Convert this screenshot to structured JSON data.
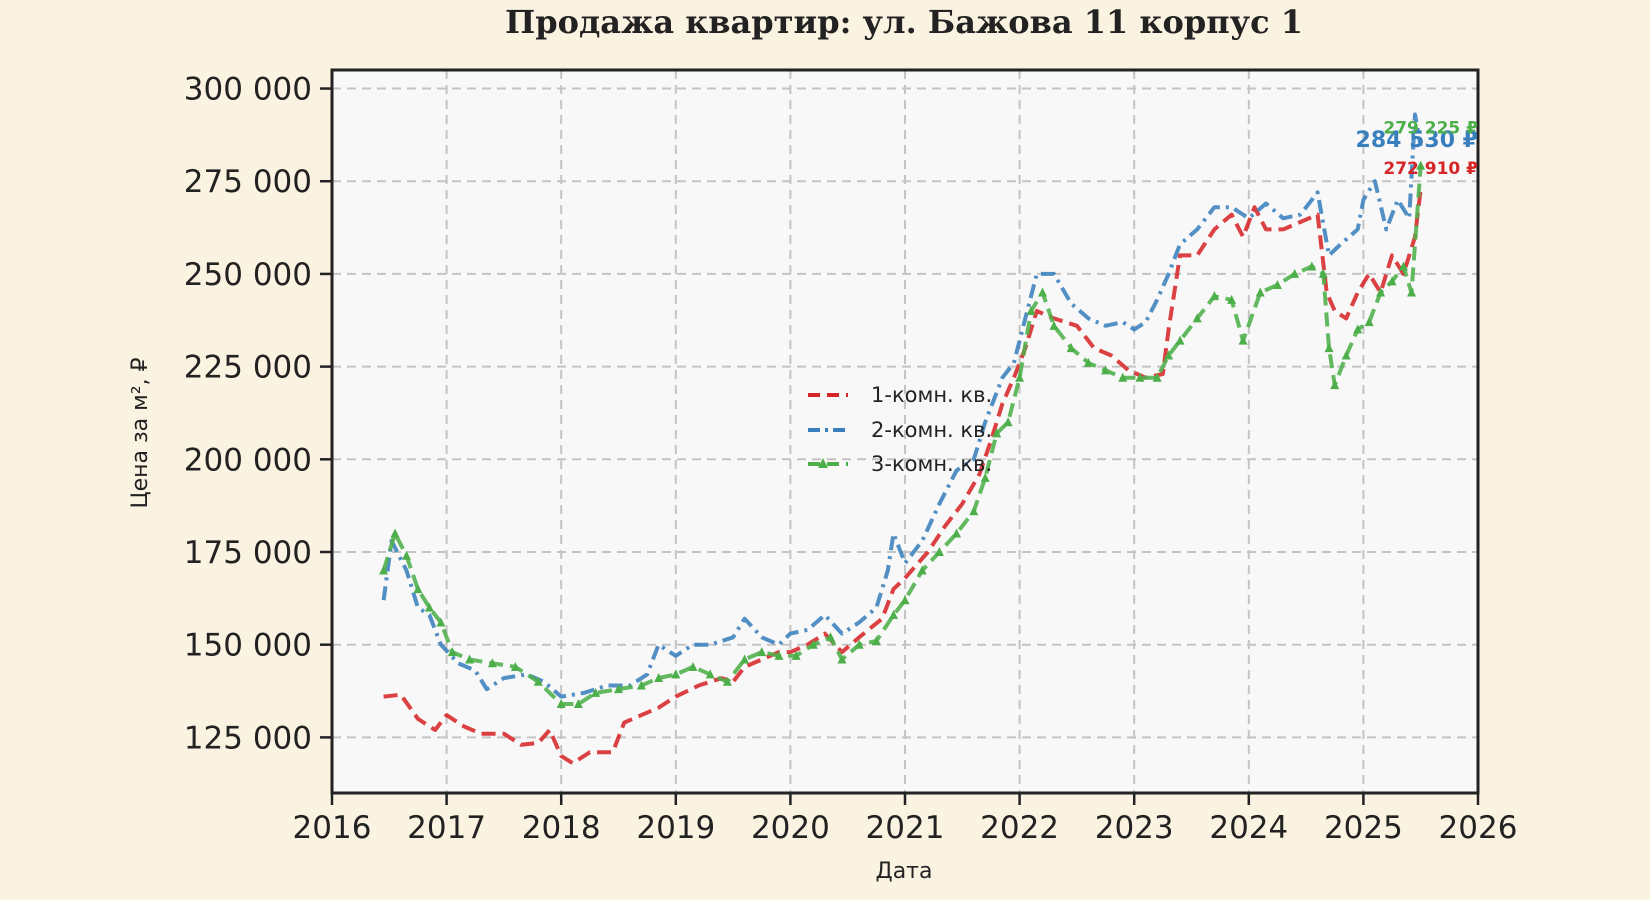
{
  "chart_data": {
    "type": "line",
    "title": "Продажа квартир: ул. Бажова 11 корпус 1",
    "xlabel": "Дата",
    "ylabel": "Цена за м², ₽",
    "x_ticks": [
      "2016",
      "2017",
      "2018",
      "2019",
      "2020",
      "2021",
      "2022",
      "2023",
      "2024",
      "2025",
      "2026"
    ],
    "y_ticks": [
      "125 000",
      "150 000",
      "175 000",
      "200 000",
      "225 000",
      "250 000",
      "275 000",
      "300 000"
    ],
    "xlim": [
      2016.0,
      2026.0
    ],
    "ylim": [
      110000,
      305000
    ],
    "grid": true,
    "legend_position": "center",
    "series": [
      {
        "name": "1-комн. кв.",
        "color": "#d62728",
        "style": "dashed",
        "end_label": "272 910 ₽",
        "end_value": 272910,
        "points": [
          [
            2016.45,
            136000
          ],
          [
            2016.6,
            136500
          ],
          [
            2016.75,
            130000
          ],
          [
            2016.9,
            127000
          ],
          [
            2017.0,
            131000
          ],
          [
            2017.15,
            128000
          ],
          [
            2017.3,
            126000
          ],
          [
            2017.5,
            126000
          ],
          [
            2017.65,
            123000
          ],
          [
            2017.8,
            123500
          ],
          [
            2017.9,
            127000
          ],
          [
            2018.0,
            120000
          ],
          [
            2018.1,
            118000
          ],
          [
            2018.25,
            121000
          ],
          [
            2018.45,
            121000
          ],
          [
            2018.55,
            129000
          ],
          [
            2018.7,
            131000
          ],
          [
            2018.85,
            133000
          ],
          [
            2019.0,
            136000
          ],
          [
            2019.2,
            139000
          ],
          [
            2019.4,
            141000
          ],
          [
            2019.5,
            140000
          ],
          [
            2019.6,
            144000
          ],
          [
            2019.75,
            146000
          ],
          [
            2019.9,
            148000
          ],
          [
            2020.0,
            148000
          ],
          [
            2020.15,
            150000
          ],
          [
            2020.3,
            153000
          ],
          [
            2020.45,
            148000
          ],
          [
            2020.6,
            152000
          ],
          [
            2020.8,
            157000
          ],
          [
            2020.9,
            165000
          ],
          [
            2021.0,
            168000
          ],
          [
            2021.2,
            175000
          ],
          [
            2021.35,
            182000
          ],
          [
            2021.5,
            188000
          ],
          [
            2021.65,
            196000
          ],
          [
            2021.75,
            205000
          ],
          [
            2021.85,
            215000
          ],
          [
            2021.95,
            222000
          ],
          [
            2022.05,
            230000
          ],
          [
            2022.15,
            240000
          ],
          [
            2022.3,
            238000
          ],
          [
            2022.5,
            236000
          ],
          [
            2022.65,
            230000
          ],
          [
            2022.8,
            228000
          ],
          [
            2022.95,
            224000
          ],
          [
            2023.1,
            222000
          ],
          [
            2023.25,
            223000
          ],
          [
            2023.3,
            235000
          ],
          [
            2023.4,
            255000
          ],
          [
            2023.55,
            255000
          ],
          [
            2023.7,
            262000
          ],
          [
            2023.85,
            266000
          ],
          [
            2023.95,
            260000
          ],
          [
            2024.05,
            268000
          ],
          [
            2024.15,
            262000
          ],
          [
            2024.3,
            262000
          ],
          [
            2024.45,
            264000
          ],
          [
            2024.6,
            266000
          ],
          [
            2024.68,
            245000
          ],
          [
            2024.75,
            240000
          ],
          [
            2024.85,
            238000
          ],
          [
            2024.95,
            245000
          ],
          [
            2025.05,
            250000
          ],
          [
            2025.15,
            245000
          ],
          [
            2025.25,
            255000
          ],
          [
            2025.35,
            250000
          ],
          [
            2025.45,
            260000
          ],
          [
            2025.5,
            272910
          ]
        ]
      },
      {
        "name": "2-комн. кв.",
        "color": "#3a7fbd",
        "style": "dashdot",
        "end_label": "284 530 ₽",
        "end_value": 284530,
        "points": [
          [
            2016.45,
            162000
          ],
          [
            2016.52,
            178000
          ],
          [
            2016.65,
            170000
          ],
          [
            2016.75,
            160000
          ],
          [
            2016.85,
            158000
          ],
          [
            2016.95,
            150000
          ],
          [
            2017.1,
            145000
          ],
          [
            2017.25,
            143000
          ],
          [
            2017.35,
            138000
          ],
          [
            2017.5,
            141000
          ],
          [
            2017.7,
            142000
          ],
          [
            2017.85,
            140000
          ],
          [
            2018.0,
            136000
          ],
          [
            2018.2,
            137000
          ],
          [
            2018.4,
            139000
          ],
          [
            2018.6,
            139000
          ],
          [
            2018.75,
            142000
          ],
          [
            2018.85,
            150000
          ],
          [
            2019.0,
            147000
          ],
          [
            2019.15,
            150000
          ],
          [
            2019.3,
            150000
          ],
          [
            2019.5,
            152000
          ],
          [
            2019.6,
            157000
          ],
          [
            2019.75,
            152000
          ],
          [
            2019.9,
            150000
          ],
          [
            2020.0,
            153000
          ],
          [
            2020.15,
            154000
          ],
          [
            2020.3,
            158000
          ],
          [
            2020.45,
            153000
          ],
          [
            2020.6,
            156000
          ],
          [
            2020.75,
            160000
          ],
          [
            2020.85,
            170000
          ],
          [
            2020.9,
            180000
          ],
          [
            2021.0,
            172000
          ],
          [
            2021.15,
            178000
          ],
          [
            2021.3,
            188000
          ],
          [
            2021.45,
            197000
          ],
          [
            2021.6,
            200000
          ],
          [
            2021.7,
            210000
          ],
          [
            2021.85,
            222000
          ],
          [
            2021.95,
            226000
          ],
          [
            2022.05,
            238000
          ],
          [
            2022.15,
            250000
          ],
          [
            2022.3,
            250000
          ],
          [
            2022.45,
            242000
          ],
          [
            2022.6,
            238000
          ],
          [
            2022.75,
            236000
          ],
          [
            2022.9,
            237000
          ],
          [
            2023.0,
            235000
          ],
          [
            2023.1,
            237000
          ],
          [
            2023.2,
            243000
          ],
          [
            2023.3,
            250000
          ],
          [
            2023.4,
            258000
          ],
          [
            2023.55,
            262000
          ],
          [
            2023.7,
            268000
          ],
          [
            2023.85,
            268000
          ],
          [
            2024.0,
            265000
          ],
          [
            2024.15,
            269000
          ],
          [
            2024.3,
            265000
          ],
          [
            2024.45,
            266000
          ],
          [
            2024.6,
            272000
          ],
          [
            2024.7,
            255000
          ],
          [
            2024.8,
            258000
          ],
          [
            2024.95,
            262000
          ],
          [
            2025.0,
            270000
          ],
          [
            2025.1,
            275000
          ],
          [
            2025.2,
            262000
          ],
          [
            2025.3,
            270000
          ],
          [
            2025.4,
            265000
          ],
          [
            2025.45,
            293000
          ],
          [
            2025.5,
            284530
          ]
        ]
      },
      {
        "name": "3-комн. кв.",
        "color": "#4daf4a",
        "style": "dashed-triangle",
        "end_label": "279 225 ₽",
        "end_value": 279225,
        "points": [
          [
            2016.45,
            170000
          ],
          [
            2016.55,
            180000
          ],
          [
            2016.65,
            174000
          ],
          [
            2016.75,
            165000
          ],
          [
            2016.85,
            160000
          ],
          [
            2016.95,
            156000
          ],
          [
            2017.05,
            148000
          ],
          [
            2017.2,
            146000
          ],
          [
            2017.4,
            145000
          ],
          [
            2017.6,
            144000
          ],
          [
            2017.8,
            140000
          ],
          [
            2018.0,
            134000
          ],
          [
            2018.15,
            134000
          ],
          [
            2018.3,
            137000
          ],
          [
            2018.5,
            138000
          ],
          [
            2018.7,
            139000
          ],
          [
            2018.85,
            141000
          ],
          [
            2019.0,
            142000
          ],
          [
            2019.15,
            144000
          ],
          [
            2019.3,
            142000
          ],
          [
            2019.45,
            140000
          ],
          [
            2019.6,
            146000
          ],
          [
            2019.75,
            148000
          ],
          [
            2019.9,
            147000
          ],
          [
            2020.05,
            147000
          ],
          [
            2020.2,
            150000
          ],
          [
            2020.35,
            152000
          ],
          [
            2020.45,
            146000
          ],
          [
            2020.6,
            150000
          ],
          [
            2020.75,
            151000
          ],
          [
            2020.9,
            158000
          ],
          [
            2021.0,
            162000
          ],
          [
            2021.15,
            170000
          ],
          [
            2021.3,
            175000
          ],
          [
            2021.45,
            180000
          ],
          [
            2021.6,
            186000
          ],
          [
            2021.7,
            195000
          ],
          [
            2021.8,
            207000
          ],
          [
            2021.9,
            210000
          ],
          [
            2022.0,
            222000
          ],
          [
            2022.1,
            240000
          ],
          [
            2022.2,
            245000
          ],
          [
            2022.3,
            236000
          ],
          [
            2022.45,
            230000
          ],
          [
            2022.6,
            226000
          ],
          [
            2022.75,
            224000
          ],
          [
            2022.9,
            222000
          ],
          [
            2023.05,
            222000
          ],
          [
            2023.2,
            222000
          ],
          [
            2023.3,
            228000
          ],
          [
            2023.4,
            232000
          ],
          [
            2023.55,
            238000
          ],
          [
            2023.7,
            244000
          ],
          [
            2023.85,
            243000
          ],
          [
            2023.95,
            232000
          ],
          [
            2024.1,
            245000
          ],
          [
            2024.25,
            247000
          ],
          [
            2024.4,
            250000
          ],
          [
            2024.55,
            252000
          ],
          [
            2024.65,
            250000
          ],
          [
            2024.7,
            230000
          ],
          [
            2024.75,
            220000
          ],
          [
            2024.85,
            228000
          ],
          [
            2024.95,
            235000
          ],
          [
            2025.05,
            237000
          ],
          [
            2025.15,
            245000
          ],
          [
            2025.25,
            248000
          ],
          [
            2025.35,
            252000
          ],
          [
            2025.42,
            245000
          ],
          [
            2025.5,
            279225
          ]
        ]
      }
    ]
  }
}
